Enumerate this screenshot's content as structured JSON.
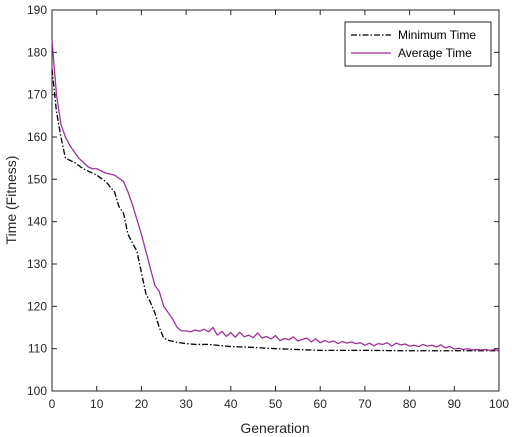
{
  "chart_data": {
    "type": "line",
    "xlabel": "Generation",
    "ylabel": "Time (Fitness)",
    "xlim": [
      0,
      100
    ],
    "ylim": [
      100,
      190
    ],
    "xticks": [
      "0",
      "10",
      "20",
      "30",
      "40",
      "50",
      "60",
      "70",
      "80",
      "90",
      "100"
    ],
    "yticks": [
      "100",
      "110",
      "120",
      "130",
      "140",
      "150",
      "160",
      "170",
      "180",
      "190"
    ],
    "grid": false,
    "legend_position": "top-right",
    "series": [
      {
        "name": "Minimum Time",
        "color": "#000000",
        "style": "dash-dot",
        "x": [
          0,
          1,
          2,
          3,
          5,
          7,
          10,
          12,
          14,
          15,
          16,
          17,
          18,
          19,
          20,
          21,
          22,
          23,
          24,
          25,
          26,
          28,
          30,
          32,
          35,
          40,
          45,
          50,
          55,
          60,
          70,
          80,
          90,
          100
        ],
        "y": [
          176,
          166,
          160,
          155,
          154,
          152.5,
          151,
          149.5,
          147,
          143.5,
          142,
          137,
          135,
          133,
          128,
          123,
          121,
          118.5,
          115,
          112.5,
          112,
          111.5,
          111.2,
          111,
          111,
          110.5,
          110.3,
          110,
          109.8,
          109.6,
          109.6,
          109.5,
          109.5,
          109.5
        ]
      },
      {
        "name": "Average Time",
        "color": "#a0309a",
        "style": "solid",
        "x": [
          0,
          1,
          2,
          3,
          4,
          5,
          6,
          7,
          8,
          9,
          10,
          12,
          14,
          16,
          17,
          18,
          19,
          20,
          21,
          22,
          23,
          24,
          25,
          26,
          27,
          28,
          29,
          30,
          31,
          32,
          33,
          34,
          35,
          36,
          37,
          38,
          39,
          40,
          41,
          42,
          43,
          44,
          45,
          46,
          47,
          48,
          49,
          50,
          51,
          52,
          53,
          54,
          55,
          56,
          57,
          58,
          59,
          60,
          61,
          62,
          63,
          64,
          65,
          66,
          67,
          68,
          69,
          70,
          71,
          72,
          73,
          74,
          75,
          76,
          77,
          78,
          79,
          80,
          81,
          82,
          83,
          84,
          85,
          86,
          87,
          88,
          89,
          90,
          91,
          92,
          93,
          94,
          95,
          96,
          97,
          98,
          99,
          100
        ],
        "y": [
          183,
          170,
          163,
          160,
          158,
          156.5,
          155,
          154,
          153,
          152.5,
          152.5,
          151.5,
          151,
          149.5,
          147,
          144,
          140.5,
          137,
          133,
          129,
          125,
          123.5,
          120,
          118.5,
          117,
          115,
          114.2,
          114.2,
          114.0,
          114.4,
          114.1,
          114.6,
          114.0,
          115.0,
          113.2,
          114.1,
          112.9,
          113.8,
          112.7,
          113.9,
          112.8,
          113.2,
          112.6,
          113.7,
          112.5,
          112.9,
          112.3,
          113.1,
          111.9,
          112.4,
          112.1,
          112.8,
          111.8,
          112.2,
          112.5,
          111.6,
          112.3,
          111.4,
          111.9,
          111.5,
          111.8,
          111.2,
          111.7,
          111.3,
          111.6,
          111.2,
          111.4,
          110.8,
          111.3,
          110.7,
          111.2,
          111.0,
          111.4,
          110.6,
          111.3,
          110.9,
          111.1,
          110.6,
          110.8,
          110.5,
          111.0,
          110.6,
          110.8,
          110.4,
          110.9,
          110.2,
          110.5,
          109.9,
          110.1,
          109.8,
          110.0,
          109.7,
          109.8,
          109.7,
          109.8,
          109.6,
          109.8,
          109.5
        ]
      }
    ]
  }
}
